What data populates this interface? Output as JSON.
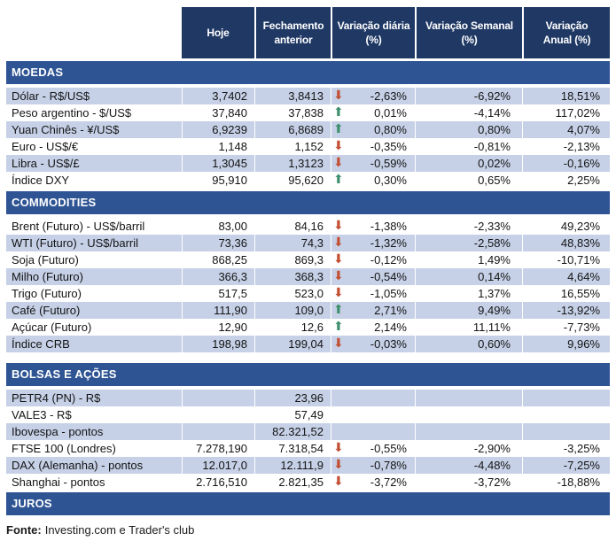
{
  "colors": {
    "header_bg": "#1F3864",
    "band_bg": "#2E5493",
    "row_shaded": "#C6D1E7",
    "arrow_up": "#3E8F6C",
    "arrow_down": "#C24E33"
  },
  "icons": {
    "up": "⬆",
    "down": "⬇"
  },
  "table": {
    "header": {
      "hoje": "Hoje",
      "fechamento": "Fechamento\nanterior",
      "diaria": "Variação diária\n(%)",
      "semanal": "Variação Semanal\n(%)",
      "anual": "Variação\nAnual (%)"
    },
    "sections": [
      {
        "title": "MOEDAS",
        "rows": [
          {
            "label": "Dólar - R$/US$",
            "hoje": "3,7402",
            "fechamento": "3,8413",
            "arrow": "down",
            "diaria": "-2,63%",
            "semanal": "-6,92%",
            "anual": "18,51%",
            "shaded": true
          },
          {
            "label": "Peso argentino - $/US$",
            "hoje": "37,840",
            "fechamento": "37,838",
            "arrow": "up",
            "diaria": "0,01%",
            "semanal": "-4,14%",
            "anual": "117,02%",
            "shaded": false
          },
          {
            "label": "Yuan Chinês - ¥/US$",
            "hoje": "6,9239",
            "fechamento": "6,8689",
            "arrow": "up",
            "diaria": "0,80%",
            "semanal": "0,80%",
            "anual": "4,07%",
            "shaded": true
          },
          {
            "label": "Euro - US$/€",
            "hoje": "1,148",
            "fechamento": "1,152",
            "arrow": "down",
            "diaria": "-0,35%",
            "semanal": "-0,81%",
            "anual": "-2,13%",
            "shaded": false
          },
          {
            "label": "Libra - US$/£",
            "hoje": "1,3045",
            "fechamento": "1,3123",
            "arrow": "down",
            "diaria": "-0,59%",
            "semanal": "0,02%",
            "anual": "-0,16%",
            "shaded": true
          },
          {
            "label": "Índice DXY",
            "hoje": "95,910",
            "fechamento": "95,620",
            "arrow": "up",
            "diaria": "0,30%",
            "semanal": "0,65%",
            "anual": "2,25%",
            "shaded": false
          }
        ]
      },
      {
        "title": "COMMODITIES",
        "rows": [
          {
            "label": "Brent (Futuro) - US$/barril",
            "hoje": "83,00",
            "fechamento": "84,16",
            "arrow": "down",
            "diaria": "-1,38%",
            "semanal": "-2,33%",
            "anual": "49,23%",
            "shaded": false
          },
          {
            "label": "WTI (Futuro) - US$/barril",
            "hoje": "73,36",
            "fechamento": "74,3",
            "arrow": "down",
            "diaria": "-1,32%",
            "semanal": "-2,58%",
            "anual": "48,83%",
            "shaded": true
          },
          {
            "label": "Soja (Futuro)",
            "hoje": "868,25",
            "fechamento": "869,3",
            "arrow": "down",
            "diaria": "-0,12%",
            "semanal": "1,49%",
            "anual": "-10,71%",
            "shaded": false
          },
          {
            "label": "Milho (Futuro)",
            "hoje": "366,3",
            "fechamento": "368,3",
            "arrow": "down",
            "diaria": "-0,54%",
            "semanal": "0,14%",
            "anual": "4,64%",
            "shaded": true
          },
          {
            "label": "Trigo (Futuro)",
            "hoje": "517,5",
            "fechamento": "523,0",
            "arrow": "down",
            "diaria": "-1,05%",
            "semanal": "1,37%",
            "anual": "16,55%",
            "shaded": false
          },
          {
            "label": "Café (Futuro)",
            "hoje": "111,90",
            "fechamento": "109,0",
            "arrow": "up",
            "diaria": "2,71%",
            "semanal": "9,49%",
            "anual": "-13,92%",
            "shaded": true
          },
          {
            "label": "Açúcar (Futuro)",
            "hoje": "12,90",
            "fechamento": "12,6",
            "arrow": "up",
            "diaria": "2,14%",
            "semanal": "11,11%",
            "anual": "-7,73%",
            "shaded": false
          },
          {
            "label": "Índice CRB",
            "hoje": "198,98",
            "fechamento": "199,04",
            "arrow": "down",
            "diaria": "-0,03%",
            "semanal": "0,60%",
            "anual": "9,96%",
            "shaded": true
          }
        ]
      },
      {
        "title": "BOLSAS E AÇÕES",
        "rows": [
          {
            "label": "PETR4 (PN) - R$",
            "hoje": "",
            "fechamento": "23,96",
            "arrow": "",
            "diaria": "",
            "semanal": "",
            "anual": "",
            "shaded": true
          },
          {
            "label": "VALE3 - R$",
            "hoje": "",
            "fechamento": "57,49",
            "arrow": "",
            "diaria": "",
            "semanal": "",
            "anual": "",
            "shaded": false
          },
          {
            "label": "Ibovespa - pontos",
            "hoje": "",
            "fechamento": "82.321,52",
            "arrow": "",
            "diaria": "",
            "semanal": "",
            "anual": "",
            "shaded": true
          },
          {
            "label": "FTSE 100 (Londres)",
            "hoje": "7.278,190",
            "fechamento": "7.318,54",
            "arrow": "down",
            "diaria": "-0,55%",
            "semanal": "-2,90%",
            "anual": "-3,25%",
            "shaded": false
          },
          {
            "label": "DAX (Alemanha) - pontos",
            "hoje": "12.017,0",
            "fechamento": "12.111,9",
            "arrow": "down",
            "diaria": "-0,78%",
            "semanal": "-4,48%",
            "anual": "-7,25%",
            "shaded": true
          },
          {
            "label": "Shanghai - pontos",
            "hoje": "2.716,510",
            "fechamento": "2.821,35",
            "arrow": "down",
            "diaria": "-3,72%",
            "semanal": "-3,72%",
            "anual": "-18,88%",
            "shaded": false
          }
        ]
      },
      {
        "title": "JUROS",
        "rows": []
      }
    ]
  },
  "footer": {
    "label": "Fonte:",
    "text": "Investing.com e Trader's club"
  }
}
